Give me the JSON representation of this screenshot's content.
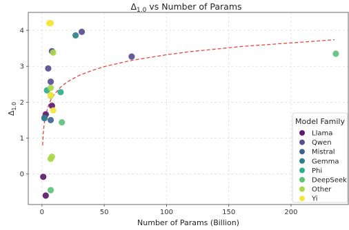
{
  "chart_data": {
    "type": "scatter",
    "title": "Δ1.0 vs Number of Params",
    "title_main": "Δ",
    "title_sub": "1.0",
    "title_rest": " vs Number of Params",
    "xlabel": "Number of Params (Billion)",
    "ylabel_main": "Δ",
    "ylabel_sub": "1.0",
    "xlim": [
      -11,
      246
    ],
    "ylim": [
      -0.85,
      4.5
    ],
    "xticks": [
      0,
      50,
      100,
      150,
      200
    ],
    "yticks": [
      0,
      1,
      2,
      3,
      4
    ],
    "grid": true,
    "legend": {
      "title": "Model Family",
      "placement": "bottom-right"
    },
    "series": [
      {
        "name": "Llama",
        "color": "#5b1a6b",
        "points": [
          [
            1,
            -0.08
          ],
          [
            3,
            -0.6
          ],
          [
            3,
            1.66
          ],
          [
            8,
            1.9
          ]
        ]
      },
      {
        "name": "Qwen",
        "color": "#5a4e8e",
        "points": [
          [
            5,
            2.94
          ],
          [
            7,
            2.57
          ],
          [
            8,
            3.42
          ],
          [
            32,
            3.96
          ],
          [
            72,
            3.27
          ]
        ]
      },
      {
        "name": "Mistral",
        "color": "#43638f",
        "points": [
          [
            7,
            1.5
          ],
          [
            2,
            1.57
          ]
        ]
      },
      {
        "name": "Gemma",
        "color": "#317f8c",
        "points": [
          [
            27,
            3.86
          ],
          [
            2,
            1.55
          ]
        ]
      },
      {
        "name": "Phi",
        "color": "#2fae8b",
        "points": [
          [
            4,
            2.33
          ],
          [
            15,
            2.28
          ]
        ]
      },
      {
        "name": "DeepSeek",
        "color": "#5cc47a",
        "points": [
          [
            7,
            -0.45
          ],
          [
            16,
            1.44
          ],
          [
            236,
            3.35
          ]
        ]
      },
      {
        "name": "Other",
        "color": "#a9d84a",
        "points": [
          [
            7,
            0.42
          ],
          [
            8,
            0.48
          ],
          [
            9,
            3.38
          ],
          [
            7,
            2.4
          ],
          [
            7,
            2.18
          ]
        ]
      },
      {
        "name": "Yi",
        "color": "#f3e43e",
        "points": [
          [
            6,
            4.2
          ],
          [
            7,
            4.2
          ],
          [
            9,
            1.77
          ],
          [
            7,
            2.2
          ]
        ]
      }
    ],
    "trend": {
      "style": "dashed",
      "color": "#e8463c",
      "x": [
        0.5,
        1,
        2,
        3,
        5,
        7,
        10,
        15,
        20,
        30,
        40,
        50,
        60,
        70,
        80,
        100,
        120,
        140,
        160,
        180,
        200,
        220,
        235
      ],
      "y": [
        0.8,
        1.13,
        1.46,
        1.65,
        1.89,
        2.06,
        2.22,
        2.42,
        2.56,
        2.75,
        2.88,
        2.99,
        3.07,
        3.15,
        3.21,
        3.32,
        3.41,
        3.48,
        3.55,
        3.6,
        3.65,
        3.7,
        3.74
      ]
    }
  }
}
